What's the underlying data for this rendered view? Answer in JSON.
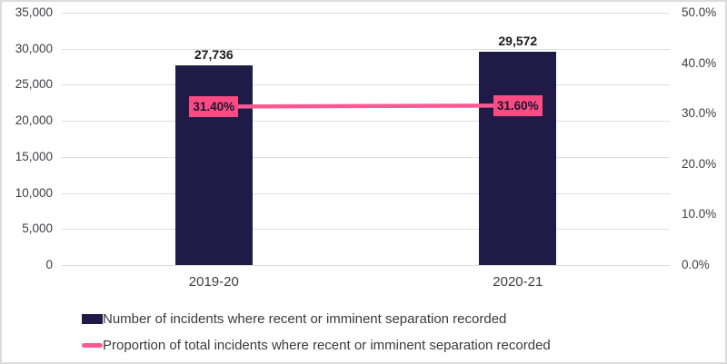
{
  "chart_data": {
    "type": "combo-bar-line",
    "title": "",
    "categories": [
      "2019-20",
      "2020-21"
    ],
    "series": [
      {
        "name": "Number of incidents where recent or imminent separation recorded",
        "type": "bar",
        "axis": "left",
        "values": [
          27736,
          29572
        ],
        "value_labels": [
          "27,736",
          "29,572"
        ],
        "color": "#201A46"
      },
      {
        "name": "Proportion of total incidents where recent or imminent separation recorded",
        "type": "line",
        "axis": "right",
        "values": [
          31.4,
          31.6
        ],
        "value_labels": [
          "31.40%",
          "31.60%"
        ],
        "color": "#FA5991",
        "label_bg": "#FA4C82"
      }
    ],
    "left_axis": {
      "min": 0,
      "max": 35000,
      "step": 5000,
      "ticks_top_to_bottom": [
        "35,000",
        "30,000",
        "25,000",
        "20,000",
        "15,000",
        "10,000",
        "5,000",
        "0"
      ]
    },
    "right_axis": {
      "min": 0,
      "max": 50,
      "step": 10,
      "ticks_top_to_bottom": [
        "50.0%",
        "40.0%",
        "30.0%",
        "20.0%",
        "10.0%",
        "0.0%"
      ]
    },
    "grid": true,
    "legend_position": "bottom",
    "colors": {
      "grid": "#dedede",
      "frame_border": "#dcdcdc",
      "axis_text": "#3d3d42",
      "bar_value_text": "#1a1a1a",
      "point_label_text": "#1c1333",
      "legend_text": "#3a3a3a"
    }
  }
}
